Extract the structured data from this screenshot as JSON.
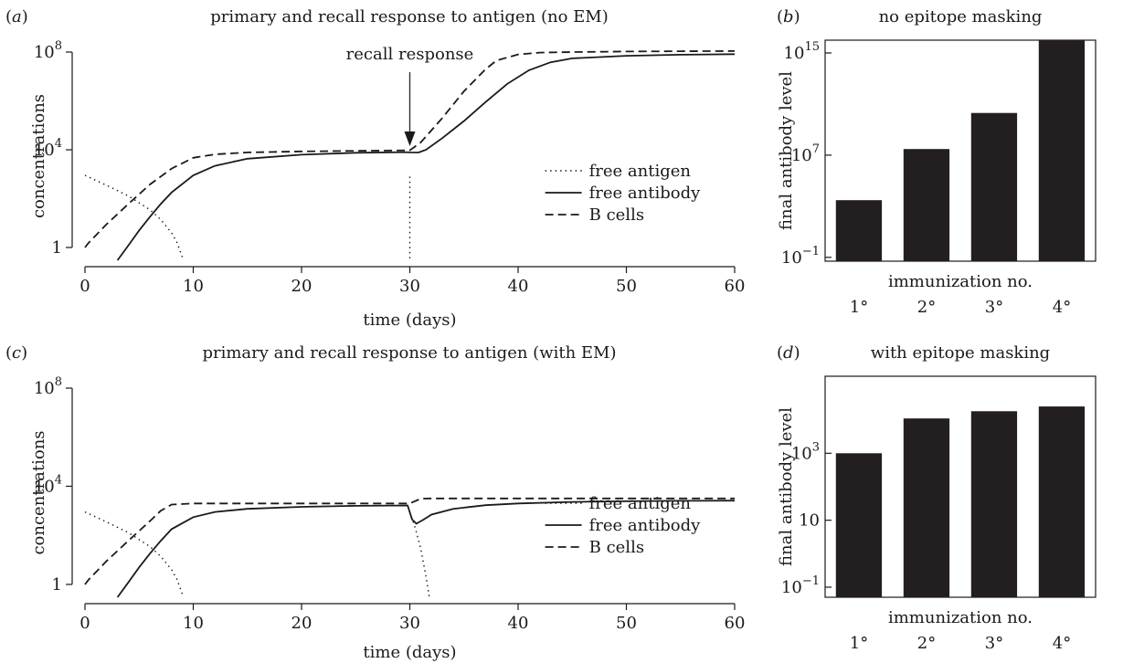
{
  "chart_data": [
    {
      "id": "a",
      "panel_label": "(a)",
      "type": "line",
      "title": "primary and recall response to antigen (no EM)",
      "xlabel": "time (days)",
      "ylabel": "concentrations",
      "xlim": [
        0,
        60
      ],
      "ylim": [
        0.3,
        100000000
      ],
      "yscale": "log",
      "xticks": [
        0,
        10,
        20,
        30,
        40,
        50,
        60
      ],
      "yticks": [
        {
          "value": 1,
          "label": "1"
        },
        {
          "value": 10000,
          "label": "10",
          "sup": "4"
        },
        {
          "value": 100000000,
          "label": "10",
          "sup": "8"
        }
      ],
      "legend": {
        "placement": "right",
        "entries": [
          {
            "name": "free antigen",
            "style": "dotted"
          },
          {
            "name": "free antibody",
            "style": "solid"
          },
          {
            "name": "B cells",
            "style": "dashed"
          }
        ]
      },
      "annotation": {
        "text": "recall response",
        "x": 30,
        "y": 10000
      },
      "series": [
        {
          "name": "free antigen",
          "style": "dotted",
          "x": [
            0,
            2,
            4,
            6,
            7,
            8,
            8.5,
            9,
            9.05
          ],
          "y": [
            900,
            350,
            130,
            35,
            14,
            4,
            1.6,
            0.4,
            0.3
          ]
        },
        {
          "name": "free antigen",
          "style": "dotted",
          "x": [
            30,
            30
          ],
          "y": [
            800,
            0.3
          ]
        },
        {
          "name": "free antibody",
          "style": "solid",
          "x": [
            3,
            4,
            5,
            6,
            7,
            8,
            10,
            12,
            15,
            20,
            25,
            29.5,
            30,
            30.8,
            31.5,
            33,
            35,
            37,
            39,
            41,
            43,
            45,
            50,
            55,
            60
          ],
          "y": [
            0.3,
            1.2,
            5,
            18,
            60,
            180,
            900,
            2200,
            4300,
            6300,
            7500,
            8000,
            7800,
            7700,
            10000,
            30000,
            150000,
            900000,
            5000000,
            18000000,
            38000000,
            55000000,
            70000000,
            78000000,
            82000000
          ]
        },
        {
          "name": "B cells",
          "style": "dashed",
          "x": [
            0,
            0.3,
            2,
            4,
            6,
            8,
            10,
            12,
            15,
            20,
            25,
            30,
            31,
            33,
            35,
            37,
            38,
            40,
            42,
            45,
            50,
            55,
            60
          ],
          "y": [
            1,
            1.5,
            9,
            60,
            380,
            1700,
            4700,
            6500,
            7800,
            8600,
            9000,
            9500,
            20000,
            200000,
            2500000,
            20000000,
            45000000,
            80000000,
            95000000,
            100000000,
            105000000,
            108000000,
            110000000
          ]
        }
      ]
    },
    {
      "id": "b",
      "panel_label": "(b)",
      "type": "bar",
      "title": "no epitope masking",
      "xlabel": "immunization no.",
      "ylabel": "final antibody level",
      "yscale": "log",
      "ylim": [
        0.05,
        10000000000000000
      ],
      "yticks": [
        {
          "value": 0.1,
          "label": "10",
          "sup": "−1"
        },
        {
          "value": 10000000,
          "label": "10",
          "sup": "7"
        },
        {
          "value": 1000000000000000,
          "label": "10",
          "sup": "15"
        }
      ],
      "categories": [
        "1°",
        "2°",
        "3°",
        "4°"
      ],
      "values": [
        3000,
        30000000,
        20000000000,
        30000000000000000
      ]
    },
    {
      "id": "c",
      "panel_label": "(c)",
      "type": "line",
      "title": "primary and recall response to antigen (with EM)",
      "xlabel": "time (days)",
      "ylabel": "concentrations",
      "xlim": [
        0,
        60
      ],
      "ylim": [
        0.3,
        100000000
      ],
      "yscale": "log",
      "xticks": [
        0,
        10,
        20,
        30,
        40,
        50,
        60
      ],
      "yticks": [
        {
          "value": 1,
          "label": "1"
        },
        {
          "value": 10000,
          "label": "10",
          "sup": "4"
        },
        {
          "value": 100000000,
          "label": "10",
          "sup": "8"
        }
      ],
      "legend": {
        "placement": "right",
        "entries": [
          {
            "name": "free antigen",
            "style": "dotted"
          },
          {
            "name": "free antibody",
            "style": "solid"
          },
          {
            "name": "B cells",
            "style": "dashed"
          }
        ]
      },
      "series": [
        {
          "name": "free antigen",
          "style": "dotted",
          "x": [
            0,
            2,
            4,
            6,
            7,
            8,
            8.5,
            9,
            9.05
          ],
          "y": [
            900,
            350,
            130,
            35,
            14,
            4,
            1.6,
            0.4,
            0.3
          ]
        },
        {
          "name": "free antigen",
          "style": "dotted",
          "x": [
            30,
            30.5,
            31,
            31.5,
            31.8
          ],
          "y": [
            900,
            200,
            30,
            2,
            0.3
          ]
        },
        {
          "name": "free antibody",
          "style": "solid",
          "x": [
            3,
            4,
            5,
            6,
            7,
            8,
            10,
            12,
            15,
            20,
            25,
            29.8,
            30.2,
            30.6,
            31.2,
            32,
            34,
            37,
            40,
            45,
            50,
            55,
            60
          ],
          "y": [
            0.3,
            1.2,
            5,
            18,
            60,
            180,
            550,
            900,
            1200,
            1450,
            1600,
            1650,
            450,
            300,
            420,
            700,
            1200,
            1700,
            2000,
            2300,
            2450,
            2550,
            2600
          ]
        },
        {
          "name": "B cells",
          "style": "dashed",
          "x": [
            0,
            0.3,
            2,
            4,
            6,
            7,
            8,
            10,
            15,
            20,
            25,
            30,
            31,
            32,
            40,
            50,
            60
          ],
          "y": [
            1,
            1.5,
            9,
            60,
            380,
            1000,
            1800,
            2000,
            2000,
            2000,
            2000,
            2000,
            3100,
            3200,
            3200,
            3200,
            3200
          ]
        }
      ]
    },
    {
      "id": "d",
      "panel_label": "(d)",
      "type": "bar",
      "title": "with epitope masking",
      "xlabel": "immunization no.",
      "ylabel": "final antibody level",
      "yscale": "log",
      "ylim": [
        0.05,
        200000
      ],
      "yticks": [
        {
          "value": 0.1,
          "label": "10",
          "sup": "−1"
        },
        {
          "value": 10,
          "label": "10"
        },
        {
          "value": 1000,
          "label": "10",
          "sup": "3"
        }
      ],
      "categories": [
        "1°",
        "2°",
        "3°",
        "4°"
      ],
      "values": [
        1000,
        11000,
        18000,
        25000
      ]
    }
  ]
}
